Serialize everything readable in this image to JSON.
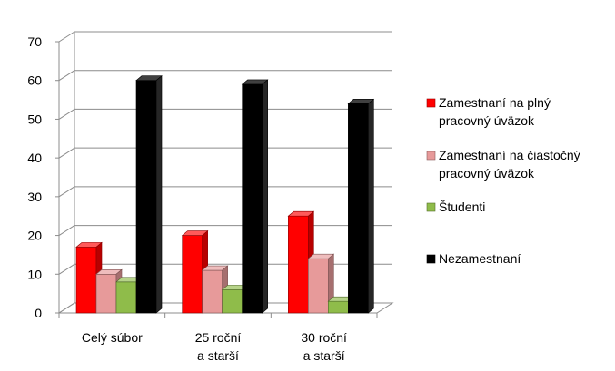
{
  "chart_data": {
    "type": "bar",
    "categories": [
      [
        "Celý súbor"
      ],
      [
        "25 roční",
        "a starší"
      ],
      [
        "30 roční",
        "a starší"
      ]
    ],
    "series": [
      {
        "name": "Zamestnaní na plný pracovný úväzok",
        "values": [
          17,
          20,
          25
        ],
        "color": "#ff0000"
      },
      {
        "name": "Zamestnaní na čiastočný pracovný úväzok",
        "values": [
          10,
          11,
          14
        ],
        "color": "#e79a9a"
      },
      {
        "name": "Študenti",
        "values": [
          8,
          6,
          3
        ],
        "color": "#8fbc4a"
      },
      {
        "name": "Nezamestnaní",
        "values": [
          60,
          59,
          54
        ],
        "color": "#000000"
      }
    ],
    "legend": {
      "position": "right",
      "entries": [
        [
          "Zamestnaní na plný",
          "pracovný úväzok"
        ],
        [
          "Zamestnaní na čiastočný",
          "pracovný úväzok"
        ],
        [
          "Študenti"
        ],
        [
          "Nezamestnaní"
        ]
      ]
    },
    "ylim": [
      0,
      70
    ],
    "yticks": [
      "0",
      "10",
      "20",
      "30",
      "40",
      "50",
      "60",
      "70"
    ],
    "grid": true,
    "style": "3d-clustered-column"
  }
}
